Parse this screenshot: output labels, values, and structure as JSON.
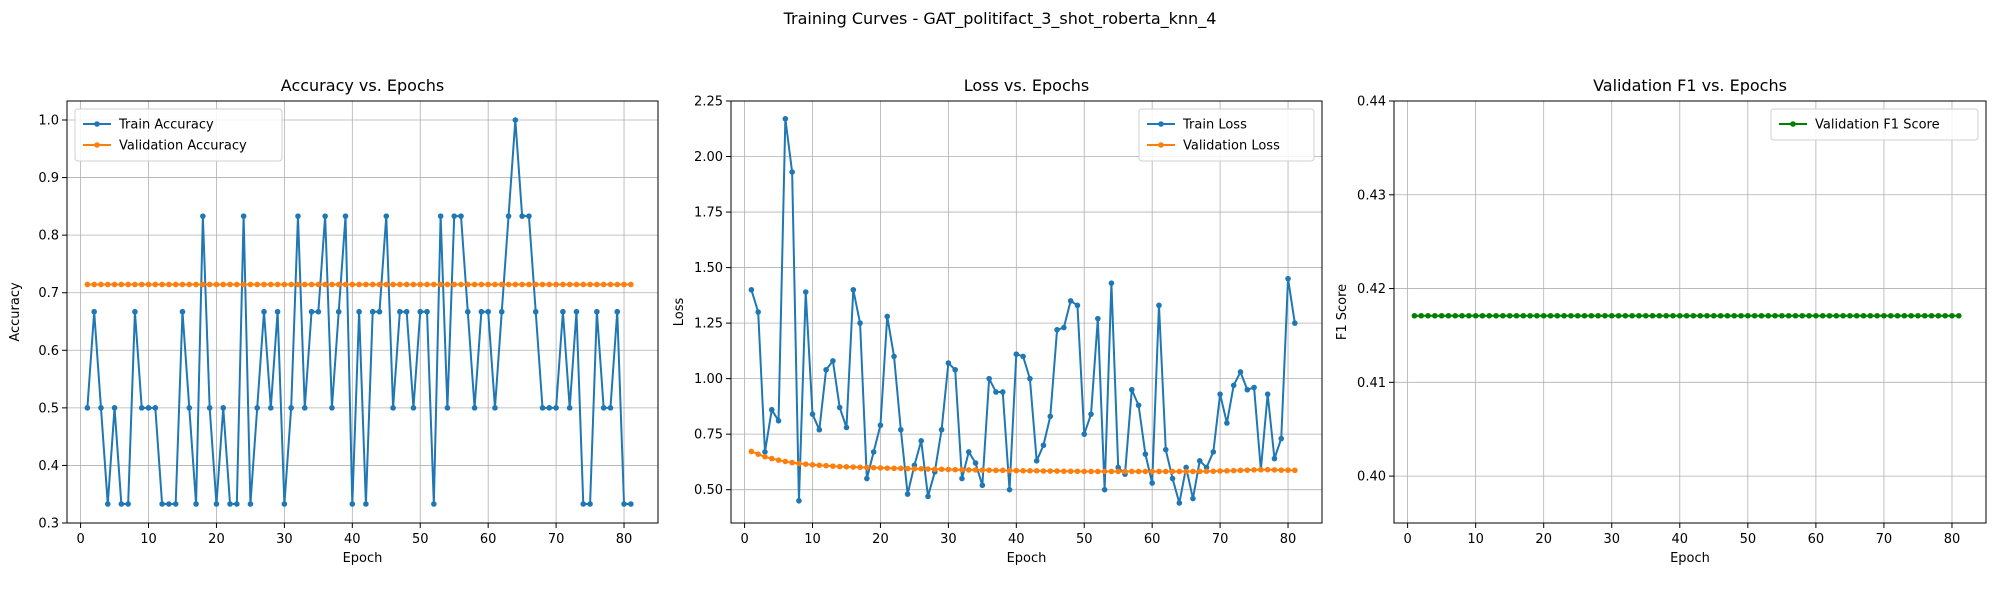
{
  "figure": {
    "title": "Training Curves - GAT_politifact_3_shot_roberta_knn_4"
  },
  "chart_data": [
    {
      "type": "line",
      "title": "Accuracy vs. Epochs",
      "xlabel": "Epoch",
      "ylabel": "Accuracy",
      "xlim": [
        -2,
        85
      ],
      "ylim": [
        0.3,
        1.033
      ],
      "xticks": [
        0,
        10,
        20,
        30,
        40,
        50,
        60,
        70,
        80
      ],
      "yticks": [
        0.3,
        0.4,
        0.5,
        0.6,
        0.7,
        0.8,
        0.9,
        1.0
      ],
      "ytick_labels": [
        "0.3",
        "0.4",
        "0.5",
        "0.6",
        "0.7",
        "0.8",
        "0.9",
        "1.0"
      ],
      "grid": true,
      "legend_position": "upper left",
      "x": [
        1,
        2,
        3,
        4,
        5,
        6,
        7,
        8,
        9,
        10,
        11,
        12,
        13,
        14,
        15,
        16,
        17,
        18,
        19,
        20,
        21,
        22,
        23,
        24,
        25,
        26,
        27,
        28,
        29,
        30,
        31,
        32,
        33,
        34,
        35,
        36,
        37,
        38,
        39,
        40,
        41,
        42,
        43,
        44,
        45,
        46,
        47,
        48,
        49,
        50,
        51,
        52,
        53,
        54,
        55,
        56,
        57,
        58,
        59,
        60,
        61,
        62,
        63,
        64,
        65,
        66,
        67,
        68,
        69,
        70,
        71,
        72,
        73,
        74,
        75,
        76,
        77,
        78,
        79,
        80,
        81
      ],
      "series": [
        {
          "name": "Train Accuracy",
          "color": "#1f77b4",
          "values": [
            0.5,
            0.667,
            0.5,
            0.333,
            0.5,
            0.333,
            0.333,
            0.667,
            0.5,
            0.5,
            0.5,
            0.333,
            0.333,
            0.333,
            0.667,
            0.5,
            0.333,
            0.833,
            0.5,
            0.333,
            0.5,
            0.333,
            0.333,
            0.833,
            0.333,
            0.5,
            0.667,
            0.5,
            0.667,
            0.333,
            0.5,
            0.833,
            0.5,
            0.667,
            0.667,
            0.833,
            0.5,
            0.667,
            0.833,
            0.333,
            0.667,
            0.333,
            0.667,
            0.667,
            0.833,
            0.5,
            0.667,
            0.667,
            0.5,
            0.667,
            0.667,
            0.333,
            0.833,
            0.5,
            0.833,
            0.833,
            0.667,
            0.5,
            0.667,
            0.667,
            0.5,
            0.667,
            0.833,
            1.0,
            0.833,
            0.833,
            0.667,
            0.5,
            0.5,
            0.5,
            0.667,
            0.5,
            0.667,
            0.333,
            0.333,
            0.667,
            0.5,
            0.5,
            0.667,
            0.333,
            0.333
          ]
        },
        {
          "name": "Validation Accuracy",
          "color": "#ff7f0e",
          "constant": 0.7143
        }
      ]
    },
    {
      "type": "line",
      "title": "Loss vs. Epochs",
      "xlabel": "Epoch",
      "ylabel": "Loss",
      "xlim": [
        -2,
        85
      ],
      "ylim": [
        0.35,
        2.25
      ],
      "xticks": [
        0,
        10,
        20,
        30,
        40,
        50,
        60,
        70,
        80
      ],
      "yticks": [
        0.5,
        0.75,
        1.0,
        1.25,
        1.5,
        1.75,
        2.0,
        2.25
      ],
      "ytick_labels": [
        "0.50",
        "0.75",
        "1.00",
        "1.25",
        "1.50",
        "1.75",
        "2.00",
        "2.25"
      ],
      "grid": true,
      "legend_position": "upper right",
      "x": [
        1,
        2,
        3,
        4,
        5,
        6,
        7,
        8,
        9,
        10,
        11,
        12,
        13,
        14,
        15,
        16,
        17,
        18,
        19,
        20,
        21,
        22,
        23,
        24,
        25,
        26,
        27,
        28,
        29,
        30,
        31,
        32,
        33,
        34,
        35,
        36,
        37,
        38,
        39,
        40,
        41,
        42,
        43,
        44,
        45,
        46,
        47,
        48,
        49,
        50,
        51,
        52,
        53,
        54,
        55,
        56,
        57,
        58,
        59,
        60,
        61,
        62,
        63,
        64,
        65,
        66,
        67,
        68,
        69,
        70,
        71,
        72,
        73,
        74,
        75,
        76,
        77,
        78,
        79,
        80,
        81
      ],
      "series": [
        {
          "name": "Train Loss",
          "color": "#1f77b4",
          "values": [
            1.4,
            1.3,
            0.67,
            0.86,
            0.81,
            2.17,
            1.93,
            0.45,
            1.39,
            0.84,
            0.77,
            1.04,
            1.08,
            0.87,
            0.78,
            1.4,
            1.25,
            0.55,
            0.67,
            0.79,
            1.28,
            1.1,
            0.77,
            0.48,
            0.61,
            0.72,
            0.47,
            0.58,
            0.77,
            1.07,
            1.04,
            0.55,
            0.67,
            0.62,
            0.52,
            1.0,
            0.94,
            0.94,
            0.5,
            1.11,
            1.1,
            1.0,
            0.63,
            0.7,
            0.83,
            1.22,
            1.23,
            1.35,
            1.33,
            0.75,
            0.84,
            1.27,
            0.5,
            1.43,
            0.6,
            0.57,
            0.95,
            0.88,
            0.66,
            0.53,
            1.33,
            0.68,
            0.55,
            0.44,
            0.6,
            0.46,
            0.63,
            0.6,
            0.67,
            0.93,
            0.8,
            0.97,
            1.03,
            0.95,
            0.96,
            0.59,
            0.93,
            0.64,
            0.73,
            1.45,
            1.25
          ]
        },
        {
          "name": "Validation Loss",
          "color": "#ff7f0e",
          "values": [
            0.672,
            0.66,
            0.648,
            0.64,
            0.633,
            0.627,
            0.622,
            0.618,
            0.615,
            0.612,
            0.61,
            0.608,
            0.606,
            0.604,
            0.603,
            0.602,
            0.601,
            0.6,
            0.599,
            0.598,
            0.597,
            0.596,
            0.596,
            0.595,
            0.594,
            0.594,
            0.593,
            0.592,
            0.592,
            0.591,
            0.59,
            0.59,
            0.589,
            0.589,
            0.588,
            0.588,
            0.587,
            0.587,
            0.586,
            0.586,
            0.585,
            0.585,
            0.585,
            0.584,
            0.584,
            0.584,
            0.583,
            0.583,
            0.583,
            0.582,
            0.582,
            0.582,
            0.582,
            0.582,
            0.582,
            0.582,
            0.582,
            0.582,
            0.582,
            0.582,
            0.582,
            0.582,
            0.582,
            0.582,
            0.582,
            0.582,
            0.582,
            0.583,
            0.583,
            0.584,
            0.585,
            0.586,
            0.587,
            0.588,
            0.589,
            0.59,
            0.59,
            0.589,
            0.588,
            0.588,
            0.587
          ]
        }
      ]
    },
    {
      "type": "line",
      "title": "Validation F1 vs. Epochs",
      "xlabel": "Epoch",
      "ylabel": "F1 Score",
      "xlim": [
        -2,
        85
      ],
      "ylim": [
        0.395,
        0.44
      ],
      "xticks": [
        0,
        10,
        20,
        30,
        40,
        50,
        60,
        70,
        80
      ],
      "yticks": [
        0.4,
        0.41,
        0.42,
        0.43,
        0.44
      ],
      "ytick_labels": [
        "0.40",
        "0.41",
        "0.42",
        "0.43",
        "0.44"
      ],
      "grid": true,
      "legend_position": "upper right",
      "x": [
        1,
        2,
        3,
        4,
        5,
        6,
        7,
        8,
        9,
        10,
        11,
        12,
        13,
        14,
        15,
        16,
        17,
        18,
        19,
        20,
        21,
        22,
        23,
        24,
        25,
        26,
        27,
        28,
        29,
        30,
        31,
        32,
        33,
        34,
        35,
        36,
        37,
        38,
        39,
        40,
        41,
        42,
        43,
        44,
        45,
        46,
        47,
        48,
        49,
        50,
        51,
        52,
        53,
        54,
        55,
        56,
        57,
        58,
        59,
        60,
        61,
        62,
        63,
        64,
        65,
        66,
        67,
        68,
        69,
        70,
        71,
        72,
        73,
        74,
        75,
        76,
        77,
        78,
        79,
        80,
        81
      ],
      "series": [
        {
          "name": "Validation F1 Score",
          "color": "#008000",
          "constant": 0.4171
        }
      ]
    }
  ]
}
